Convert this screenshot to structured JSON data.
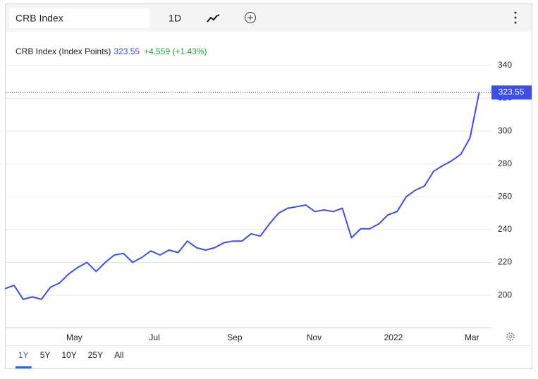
{
  "toolbar": {
    "symbol": "CRB Index",
    "interval": "1D"
  },
  "ranges": [
    "1Y",
    "5Y",
    "10Y",
    "25Y",
    "All"
  ],
  "selected_range": "1Y",
  "chart_data": {
    "type": "line",
    "change": "+4.559 (+1.43%)",
    "series": [
      {
        "name": "CRB Index (Index Points)",
        "color": "#3d4de8",
        "values": [
          204,
          206,
          197.5,
          199,
          197.5,
          205,
          207.5,
          213,
          217,
          220,
          214.5,
          220,
          224.5,
          225.5,
          220,
          223,
          227,
          224.5,
          227.5,
          226,
          233,
          229,
          227.5,
          229,
          232,
          233,
          233,
          237.5,
          236,
          243.5,
          250,
          253,
          254,
          255,
          251,
          252,
          251,
          253,
          235,
          240.5,
          240.5,
          243.5,
          249,
          251,
          260,
          264,
          266.5,
          275.5,
          279,
          282,
          286,
          296,
          323.55
        ]
      }
    ],
    "xlim": [
      0,
      52.5
    ],
    "xticks": [
      {
        "value": 7.6,
        "label": "May"
      },
      {
        "value": 16.4,
        "label": "Jul"
      },
      {
        "value": 25.2,
        "label": "Sep"
      },
      {
        "value": 33.9,
        "label": "Nov"
      },
      {
        "value": 42.6,
        "label": "2022"
      },
      {
        "value": 51.2,
        "label": "Mar"
      }
    ],
    "ylim": [
      180.3,
      360.6
    ],
    "yticks": [
      200,
      220,
      240,
      260,
      280,
      300,
      320,
      340
    ],
    "grid": true
  }
}
